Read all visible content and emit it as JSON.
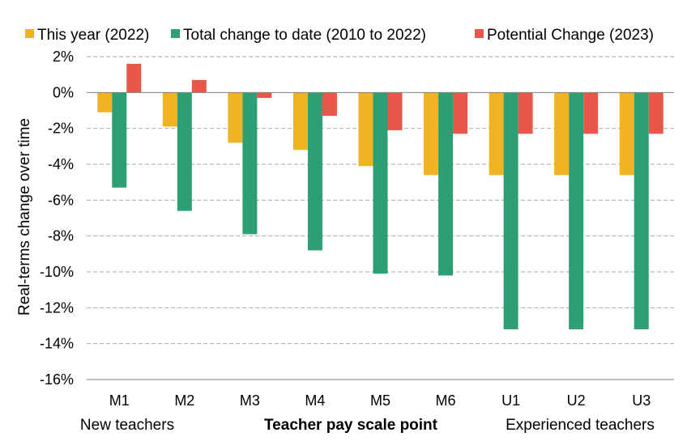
{
  "chart_data": {
    "type": "bar",
    "title": "",
    "xlabel": "Teacher pay scale point",
    "ylabel": "Real-terms change over time",
    "x_annotations": {
      "left": "New teachers",
      "right": "Experienced teachers"
    },
    "categories": [
      "M1",
      "M2",
      "M3",
      "M4",
      "M5",
      "M6",
      "U1",
      "U2",
      "U3"
    ],
    "ylim": [
      -16,
      2
    ],
    "yticks": [
      2,
      0,
      -2,
      -4,
      -6,
      -8,
      -10,
      -12,
      -14,
      -16
    ],
    "ytick_labels": [
      "2%",
      "0%",
      "-2%",
      "-4%",
      "-6%",
      "-8%",
      "-10%",
      "-12%",
      "-14%",
      "-16%"
    ],
    "y_unit": "%",
    "grid": "horizontal dashed",
    "legend_position": "top",
    "series": [
      {
        "name": "This year (2022)",
        "color": "#F0B323",
        "values": [
          -1.1,
          -1.9,
          -2.8,
          -3.2,
          -4.1,
          -4.6,
          -4.6,
          -4.6,
          -4.6
        ]
      },
      {
        "name": "Total change to date (2010 to 2022)",
        "color": "#2E9E74",
        "values": [
          -5.3,
          -6.6,
          -7.9,
          -8.8,
          -10.1,
          -10.2,
          -13.2,
          -13.2,
          -13.2
        ]
      },
      {
        "name": "Potential Change (2023)",
        "color": "#E8574A",
        "values": [
          1.6,
          0.7,
          -0.3,
          -1.3,
          -2.1,
          -2.3,
          -2.3,
          -2.3,
          -2.3
        ]
      }
    ]
  }
}
